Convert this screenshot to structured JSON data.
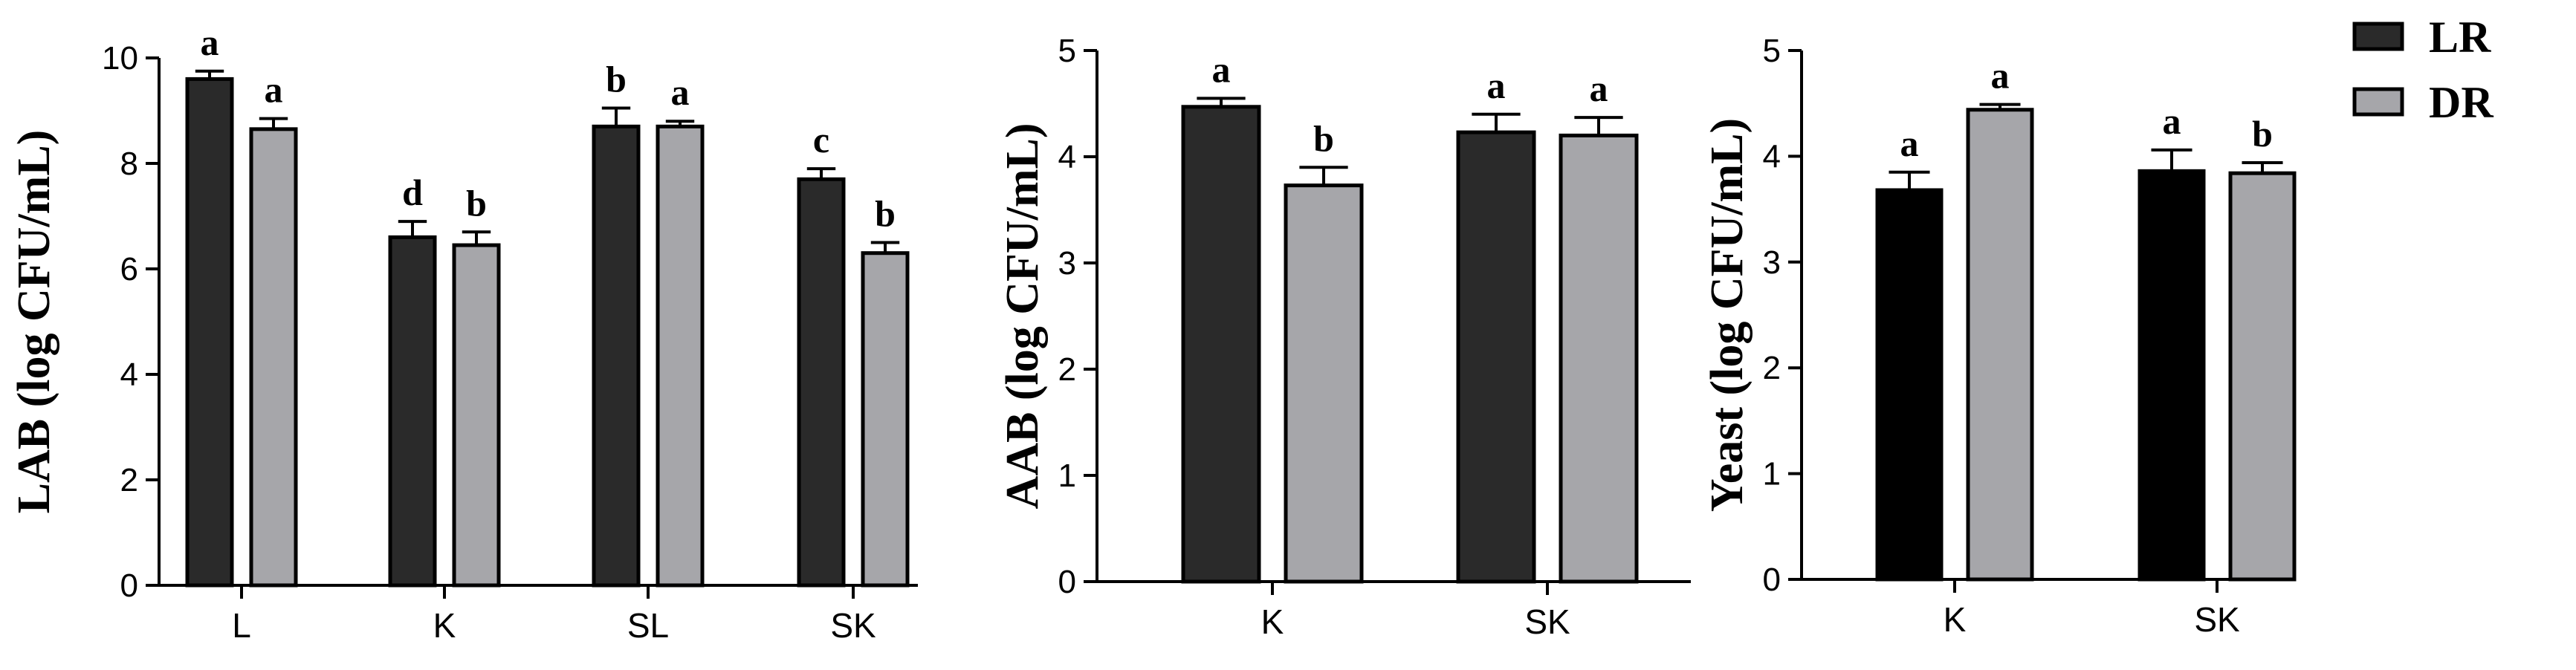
{
  "legend": [
    {
      "name": "LR",
      "color": "#2a2a2a"
    },
    {
      "name": "DR",
      "color": "#a6a6aa"
    }
  ],
  "chart_data": [
    {
      "type": "bar",
      "ylabel": "LAB (log CFU/mL)",
      "ylim": [
        0,
        10
      ],
      "yticks": [
        0,
        2,
        4,
        6,
        8,
        10
      ],
      "categories": [
        "L",
        "K",
        "SL",
        "SK"
      ],
      "series": [
        {
          "name": "LR",
          "color": "#2a2a2a",
          "values": [
            9.6,
            6.6,
            8.7,
            7.7
          ],
          "errors": [
            0.15,
            0.3,
            0.35,
            0.2
          ],
          "letters": [
            "a",
            "d",
            "b",
            "c"
          ]
        },
        {
          "name": "DR",
          "color": "#a6a6aa",
          "values": [
            8.65,
            6.45,
            8.7,
            6.3
          ],
          "errors": [
            0.2,
            0.25,
            0.1,
            0.2
          ],
          "letters": [
            "a",
            "b",
            "a",
            "b"
          ]
        }
      ]
    },
    {
      "type": "bar",
      "ylabel": "AAB (log CFU/mL)",
      "ylim": [
        0,
        5
      ],
      "yticks": [
        0,
        1,
        2,
        3,
        4,
        5
      ],
      "categories": [
        "K",
        "SK"
      ],
      "series": [
        {
          "name": "LR",
          "color": "#2a2a2a",
          "values": [
            4.47,
            4.23
          ],
          "errors": [
            0.08,
            0.17
          ],
          "letters": [
            "a",
            "a"
          ]
        },
        {
          "name": "DR",
          "color": "#a6a6aa",
          "values": [
            3.73,
            4.2
          ],
          "errors": [
            0.17,
            0.17
          ],
          "letters": [
            "b",
            "a"
          ]
        }
      ]
    },
    {
      "type": "bar",
      "ylabel": "Yeast (log CFU/mL)",
      "ylim": [
        0,
        5
      ],
      "yticks": [
        0,
        1,
        2,
        3,
        4,
        5
      ],
      "categories": [
        "K",
        "SK"
      ],
      "series": [
        {
          "name": "LR",
          "color": "#000000",
          "values": [
            3.68,
            3.86
          ],
          "errors": [
            0.17,
            0.2
          ],
          "letters": [
            "a",
            "a"
          ]
        },
        {
          "name": "DR",
          "color": "#a6a6aa",
          "values": [
            4.44,
            3.84
          ],
          "errors": [
            0.05,
            0.1
          ],
          "letters": [
            "a",
            "b"
          ]
        }
      ]
    }
  ]
}
